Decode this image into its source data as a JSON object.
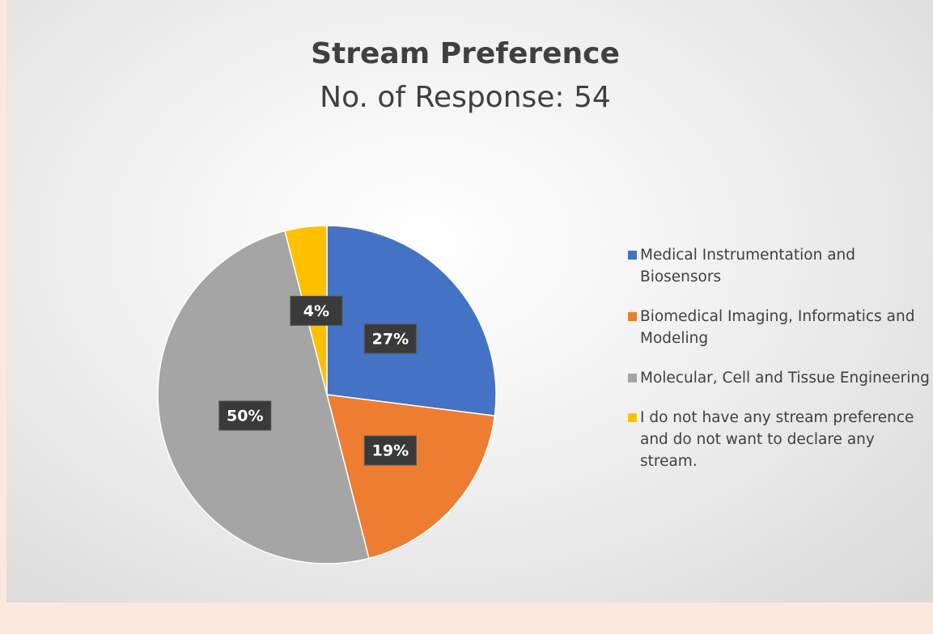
{
  "chart_data": {
    "type": "pie",
    "title": "Stream Preference",
    "subtitle": "No. of Response: 54",
    "categories": [
      "Medical Instrumentation and Biosensors",
      "Biomedical Imaging, Informatics and Modeling",
      "Molecular, Cell and Tissue Engineering",
      "I do not have any stream preference and do not want to declare any stream."
    ],
    "values": [
      27,
      19,
      50,
      4
    ],
    "value_labels": [
      "27%",
      "19%",
      "50%",
      "4%"
    ],
    "colors": [
      "#4472c4",
      "#ed7d31",
      "#a5a5a5",
      "#ffc000"
    ],
    "legend": "right"
  }
}
